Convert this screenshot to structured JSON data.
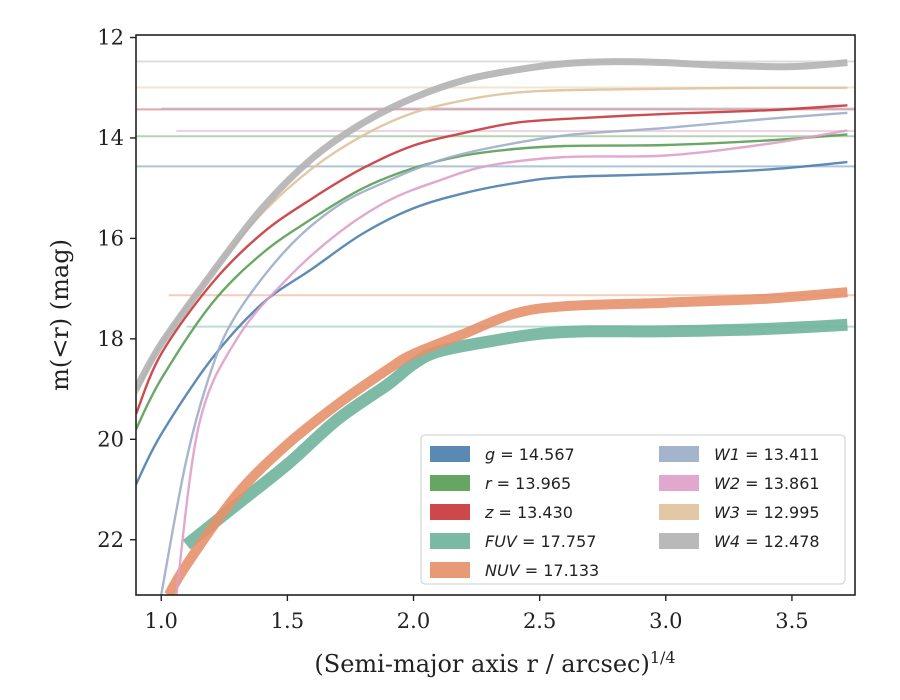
{
  "chart_data": {
    "type": "line",
    "xlabel": "(Semi-major axis r / arcsec)",
    "xlabel_exponent": "1/4",
    "ylabel": "m(<r) (mag)",
    "xlim": [
      0.9,
      3.75
    ],
    "ylim": [
      23.1,
      11.95
    ],
    "y_inverted": true,
    "x_ticks": [
      1.0,
      1.5,
      2.0,
      2.5,
      3.0,
      3.5
    ],
    "x_tick_labels": [
      "1.0",
      "1.5",
      "2.0",
      "2.5",
      "3.0",
      "3.5"
    ],
    "y_ticks": [
      12,
      14,
      16,
      18,
      20,
      22
    ],
    "y_tick_labels": [
      "12",
      "14",
      "16",
      "18",
      "20",
      "22"
    ],
    "grid": false,
    "legend_position": "lower-right",
    "series": [
      {
        "name": "g",
        "legend_value": "14.567",
        "color": "#4c7fad",
        "asymptote": 14.567,
        "x": [
          0.9,
          1.0,
          1.2,
          1.4,
          1.6,
          1.8,
          2.0,
          2.2,
          2.4,
          2.6,
          3.0,
          3.4,
          3.72
        ],
        "y": [
          20.9,
          19.9,
          18.4,
          17.3,
          16.6,
          15.9,
          15.4,
          15.1,
          14.9,
          14.78,
          14.72,
          14.63,
          14.48
        ]
      },
      {
        "name": "r",
        "legend_value": "13.965",
        "color": "#5a9e55",
        "asymptote": 13.965,
        "x": [
          0.9,
          1.0,
          1.2,
          1.4,
          1.6,
          1.8,
          2.0,
          2.2,
          2.4,
          2.6,
          3.0,
          3.4,
          3.72
        ],
        "y": [
          19.8,
          18.8,
          17.3,
          16.3,
          15.6,
          15.0,
          14.6,
          14.35,
          14.22,
          14.16,
          14.14,
          14.05,
          13.93
        ]
      },
      {
        "name": "z",
        "legend_value": "13.430",
        "color": "#c9383c",
        "asymptote": 13.43,
        "x": [
          0.9,
          1.0,
          1.2,
          1.4,
          1.6,
          1.8,
          2.0,
          2.2,
          2.4,
          2.6,
          3.0,
          3.4,
          3.72
        ],
        "y": [
          19.5,
          18.3,
          16.9,
          15.9,
          15.2,
          14.6,
          14.15,
          13.9,
          13.7,
          13.62,
          13.52,
          13.45,
          13.35
        ]
      },
      {
        "name": "FUV",
        "legend_value": "17.757",
        "color": "#6fb49c",
        "asymptote": 17.757,
        "x": [
          1.1,
          1.3,
          1.5,
          1.7,
          1.9,
          2.0,
          2.1,
          2.3,
          2.5,
          2.7,
          3.0,
          3.3,
          3.5,
          3.72
        ],
        "y": [
          22.1,
          21.3,
          20.5,
          19.6,
          18.9,
          18.5,
          18.25,
          18.05,
          17.9,
          17.85,
          17.85,
          17.82,
          17.78,
          17.72
        ]
      },
      {
        "name": "NUV",
        "legend_value": "17.133",
        "color": "#e5916a",
        "asymptote": 17.133,
        "x": [
          1.03,
          1.1,
          1.3,
          1.5,
          1.7,
          1.9,
          2.0,
          2.2,
          2.4,
          2.6,
          3.0,
          3.4,
          3.72
        ],
        "y": [
          23.1,
          22.5,
          21.1,
          20.1,
          19.3,
          18.6,
          18.3,
          17.9,
          17.5,
          17.35,
          17.28,
          17.2,
          17.07
        ]
      },
      {
        "name": "W1",
        "legend_value": "13.411",
        "color": "#9daec9",
        "asymptote": 13.411,
        "x": [
          1.0,
          1.1,
          1.2,
          1.3,
          1.5,
          1.7,
          1.9,
          2.1,
          2.3,
          2.6,
          3.0,
          3.4,
          3.72
        ],
        "y": [
          23.1,
          20.4,
          18.6,
          17.5,
          16.2,
          15.35,
          14.85,
          14.45,
          14.2,
          13.95,
          13.8,
          13.62,
          13.5
        ]
      },
      {
        "name": "W2",
        "legend_value": "13.861",
        "color": "#dea0c8",
        "asymptote": 13.861,
        "x": [
          1.06,
          1.15,
          1.3,
          1.5,
          1.7,
          1.9,
          2.1,
          2.3,
          2.6,
          3.0,
          3.4,
          3.72
        ],
        "y": [
          23.1,
          19.7,
          18.0,
          16.8,
          15.9,
          15.25,
          14.85,
          14.55,
          14.38,
          14.35,
          14.12,
          13.85
        ]
      },
      {
        "name": "W3",
        "legend_value": "12.995",
        "color": "#dfc39c",
        "asymptote": 12.995,
        "x": [
          0.9,
          1.0,
          1.2,
          1.4,
          1.6,
          1.8,
          2.0,
          2.2,
          2.4,
          2.6,
          3.0,
          3.4,
          3.72
        ],
        "y": [
          19.1,
          18.1,
          16.7,
          15.5,
          14.6,
          13.95,
          13.5,
          13.25,
          13.1,
          13.05,
          13.02,
          13.0,
          13.0
        ]
      },
      {
        "name": "W4",
        "legend_value": "12.478",
        "color": "#b3b3b3",
        "asymptote": 12.478,
        "x": [
          0.9,
          1.0,
          1.2,
          1.4,
          1.6,
          1.8,
          2.0,
          2.2,
          2.4,
          2.6,
          2.8,
          3.0,
          3.2,
          3.5,
          3.72
        ],
        "y": [
          19.0,
          18.1,
          16.7,
          15.4,
          14.4,
          13.7,
          13.2,
          12.85,
          12.65,
          12.52,
          12.48,
          12.5,
          12.55,
          12.58,
          12.5
        ]
      }
    ]
  }
}
